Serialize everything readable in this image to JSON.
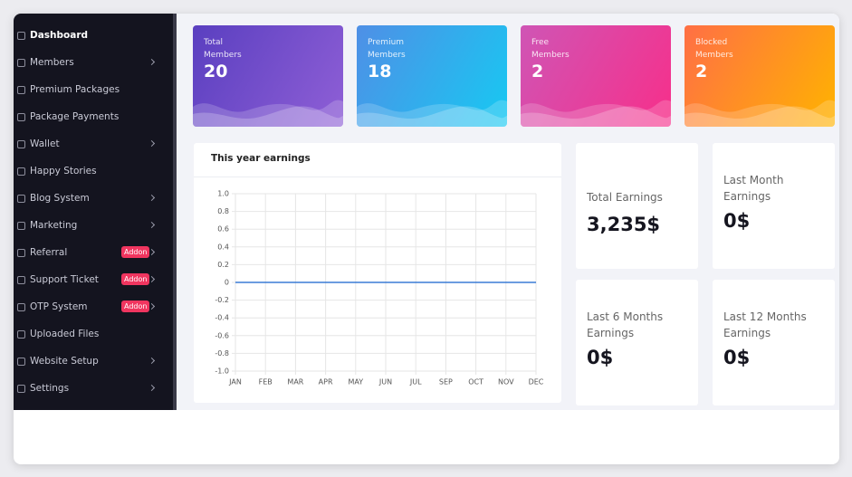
{
  "sidebar": {
    "items": [
      {
        "label": "Dashboard",
        "active": true
      },
      {
        "label": "Members",
        "submenu": true
      },
      {
        "label": "Premium Packages"
      },
      {
        "label": "Package Payments"
      },
      {
        "label": "Wallet",
        "submenu": true
      },
      {
        "label": "Happy Stories"
      },
      {
        "label": "Blog System",
        "submenu": true
      },
      {
        "label": "Marketing",
        "submenu": true
      },
      {
        "label": "Referral",
        "submenu": true,
        "badge": "Addon"
      },
      {
        "label": "Support Ticket",
        "submenu": true,
        "badge": "Addon"
      },
      {
        "label": "OTP System",
        "submenu": true,
        "badge": "Addon"
      },
      {
        "label": "Uploaded Files"
      },
      {
        "label": "Website Setup",
        "submenu": true
      },
      {
        "label": "Settings",
        "submenu": true
      }
    ]
  },
  "stat_cards": [
    {
      "label": "Total Members",
      "value": 20,
      "colors": [
        "#5a3fc0",
        "#8f5fd6"
      ]
    },
    {
      "label": "Premium Members",
      "value": 18,
      "colors": [
        "#4f8fe6",
        "#17c9f2"
      ]
    },
    {
      "label": "Free Members",
      "value": 2,
      "colors": [
        "#cf55b5",
        "#f72f8a"
      ]
    },
    {
      "label": "Blocked Members",
      "value": 2,
      "colors": [
        "#ff6f45",
        "#ffb300"
      ]
    }
  ],
  "earnings_cards": [
    {
      "label": "Total Earnings",
      "value": "3,235$"
    },
    {
      "label": "Last Month Earnings",
      "value": "0$"
    },
    {
      "label": "Last 6 Months Earnings",
      "value": "0$"
    },
    {
      "label": "Last 12 Months Earnings",
      "value": "0$"
    }
  ],
  "chart_data": {
    "type": "line",
    "title": "This year earnings",
    "categories": [
      "JAN",
      "FEB",
      "MAR",
      "APR",
      "MAY",
      "JUN",
      "JUL",
      "SEP",
      "OCT",
      "NOV",
      "DEC"
    ],
    "values": [
      0,
      0,
      0,
      0,
      0,
      0,
      0,
      0,
      0,
      0,
      0
    ],
    "color": "#3a7bd5",
    "ylim": [
      -1,
      1
    ],
    "yticks": [
      {
        "value": -1,
        "label": "-1.0"
      },
      -0.8,
      -0.6,
      -0.4,
      -0.2,
      0,
      0.2,
      0.4,
      0.6,
      0.8,
      {
        "value": 1,
        "label": "1.0"
      }
    ],
    "grid": true
  }
}
